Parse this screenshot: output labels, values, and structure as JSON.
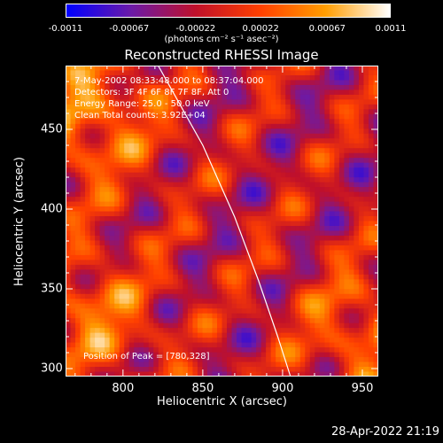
{
  "colorbar": {
    "ticks": [
      "-0.0011",
      "-0.00067",
      "-0.00022",
      "0.00022",
      "0.00067",
      "0.0011"
    ],
    "tick_values": [
      -0.0011,
      -0.00067,
      -0.00022,
      0.00022,
      0.00067,
      0.0011
    ],
    "units": "(photons cm⁻² s⁻¹ asec⁻²)"
  },
  "annotations": {
    "time": "7-May-2002 08:33:48.000 to 08:37:04.000",
    "detectors": "Detectors: 3F 4F 6F 8F 7F 8F, Att 0",
    "energy": "Energy Range: 25.0 - 50.0 keV",
    "method": "Clean      Total counts: 3.92E+04",
    "peak": "Position of Peak = [780,328]"
  },
  "datestamp": "28-Apr-2022 21:19",
  "chart_data": {
    "type": "heatmap",
    "title": "Reconstructed RHESSI Image",
    "xlabel": "Heliocentric X (arcsec)",
    "ylabel": "Heliocentric Y (arcsec)",
    "xlim": [
      764,
      960
    ],
    "ylim": [
      295,
      490
    ],
    "xticks": [
      800,
      850,
      900,
      950
    ],
    "xtick_labels": [
      "800",
      "850",
      "900",
      "950"
    ],
    "yticks": [
      300,
      350,
      400,
      450
    ],
    "ytick_labels": [
      "300",
      "350",
      "400",
      "450"
    ],
    "zlim": [
      -0.0011,
      0.0011
    ],
    "colormap_stops": [
      "#0000ff",
      "#6b1aa8",
      "#c0102a",
      "#ff4000",
      "#ff9d00",
      "#ffffff"
    ],
    "limb_curve": [
      [
        822,
        490
      ],
      [
        850,
        440
      ],
      [
        870,
        395
      ],
      [
        885,
        355
      ],
      [
        897,
        320
      ],
      [
        905,
        295
      ]
    ],
    "peak_position": [
      780,
      328
    ]
  }
}
